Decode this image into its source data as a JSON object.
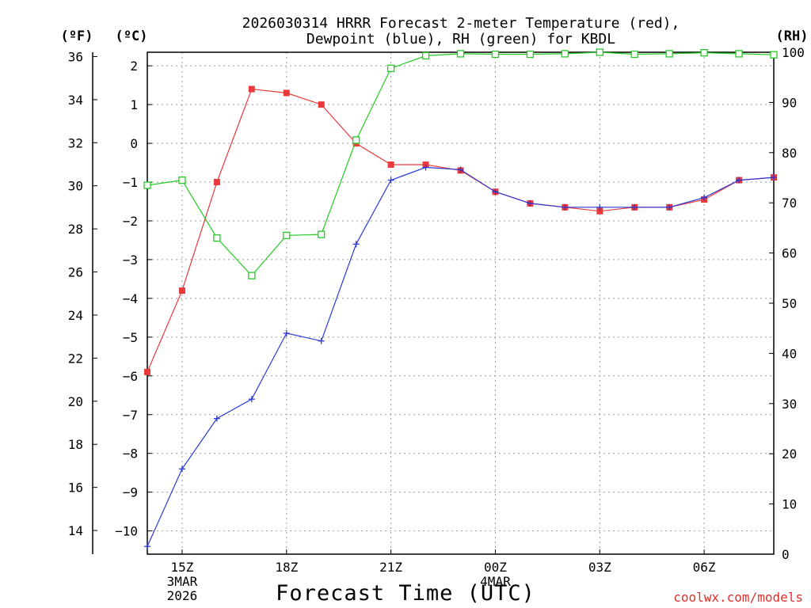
{
  "chart_data": {
    "type": "line",
    "title_line1": "2026030314 HRRR Forecast 2-meter Temperature (red),",
    "title_line2": "Dewpoint (blue), RH (green) for KBDL",
    "xlabel": "Forecast Time (UTC)",
    "credit": "coolwx.com/models",
    "unit_labels": {
      "fahrenheit": "(ºF)",
      "celsius": "(ºC)",
      "rh": "(RH)"
    },
    "x_hours": [
      14,
      15,
      16,
      17,
      18,
      19,
      20,
      21,
      22,
      23,
      24,
      25,
      26,
      27,
      28,
      29,
      30,
      31,
      32
    ],
    "x_ticks": [
      {
        "hour": 15,
        "label": "15Z",
        "sub1": "3MAR",
        "sub2": "2026"
      },
      {
        "hour": 18,
        "label": "18Z",
        "sub1": "",
        "sub2": ""
      },
      {
        "hour": 21,
        "label": "21Z",
        "sub1": "",
        "sub2": ""
      },
      {
        "hour": 24,
        "label": "00Z",
        "sub1": "4MAR",
        "sub2": ""
      },
      {
        "hour": 27,
        "label": "03Z",
        "sub1": "",
        "sub2": ""
      },
      {
        "hour": 30,
        "label": "06Z",
        "sub1": "",
        "sub2": ""
      }
    ],
    "xlim": [
      14,
      32
    ],
    "celsius_axis": {
      "ylim": [
        -10.6,
        2.35
      ],
      "ticks": [
        -10,
        -9,
        -8,
        -7,
        -6,
        -5,
        -4,
        -3,
        -2,
        -1,
        0,
        1,
        2
      ],
      "labels": [
        "−10",
        "−9",
        "−8",
        "−7",
        "−6",
        "−5",
        "−4",
        "−3",
        "−2",
        "−1",
        "0",
        "1",
        "2"
      ]
    },
    "fahrenheit_axis": {
      "ylim": [
        12.9,
        36.2
      ],
      "ticks": [
        14,
        16,
        18,
        20,
        22,
        24,
        26,
        28,
        30,
        32,
        34,
        36
      ],
      "labels": [
        "14",
        "16",
        "18",
        "20",
        "22",
        "24",
        "26",
        "28",
        "30",
        "32",
        "34",
        "36"
      ]
    },
    "rh_axis": {
      "ylim": [
        0,
        100
      ],
      "ticks": [
        0,
        10,
        20,
        30,
        40,
        50,
        60,
        70,
        80,
        90,
        100
      ],
      "labels": [
        "0",
        "10",
        "20",
        "30",
        "40",
        "50",
        "60",
        "70",
        "80",
        "90",
        "100"
      ]
    },
    "series": [
      {
        "name": "Temperature",
        "units": "C",
        "color": "#e83a3a",
        "marker": "filled-square",
        "values": [
          -5.9,
          -3.8,
          -1.0,
          1.4,
          1.3,
          1.0,
          0.0,
          -0.55,
          -0.55,
          -0.7,
          -1.25,
          -1.55,
          -1.65,
          -1.75,
          -1.65,
          -1.65,
          -1.45,
          -0.95,
          -0.88
        ]
      },
      {
        "name": "Dewpoint",
        "units": "C",
        "color": "#2a3ad8",
        "marker": "plus",
        "values": [
          -10.4,
          -8.4,
          -7.1,
          -6.6,
          -4.9,
          -5.1,
          -2.6,
          -0.95,
          -0.62,
          -0.68,
          -1.25,
          -1.55,
          -1.65,
          -1.65,
          -1.65,
          -1.65,
          -1.4,
          -0.95,
          -0.88
        ]
      },
      {
        "name": "RH",
        "units": "%",
        "color": "#22cc22",
        "marker": "open-square",
        "values": [
          73.5,
          74.5,
          63.0,
          55.5,
          63.5,
          63.7,
          82.5,
          96.8,
          99.3,
          99.7,
          99.6,
          99.6,
          99.7,
          100.0,
          99.6,
          99.7,
          99.9,
          99.7,
          99.5
        ]
      }
    ]
  }
}
